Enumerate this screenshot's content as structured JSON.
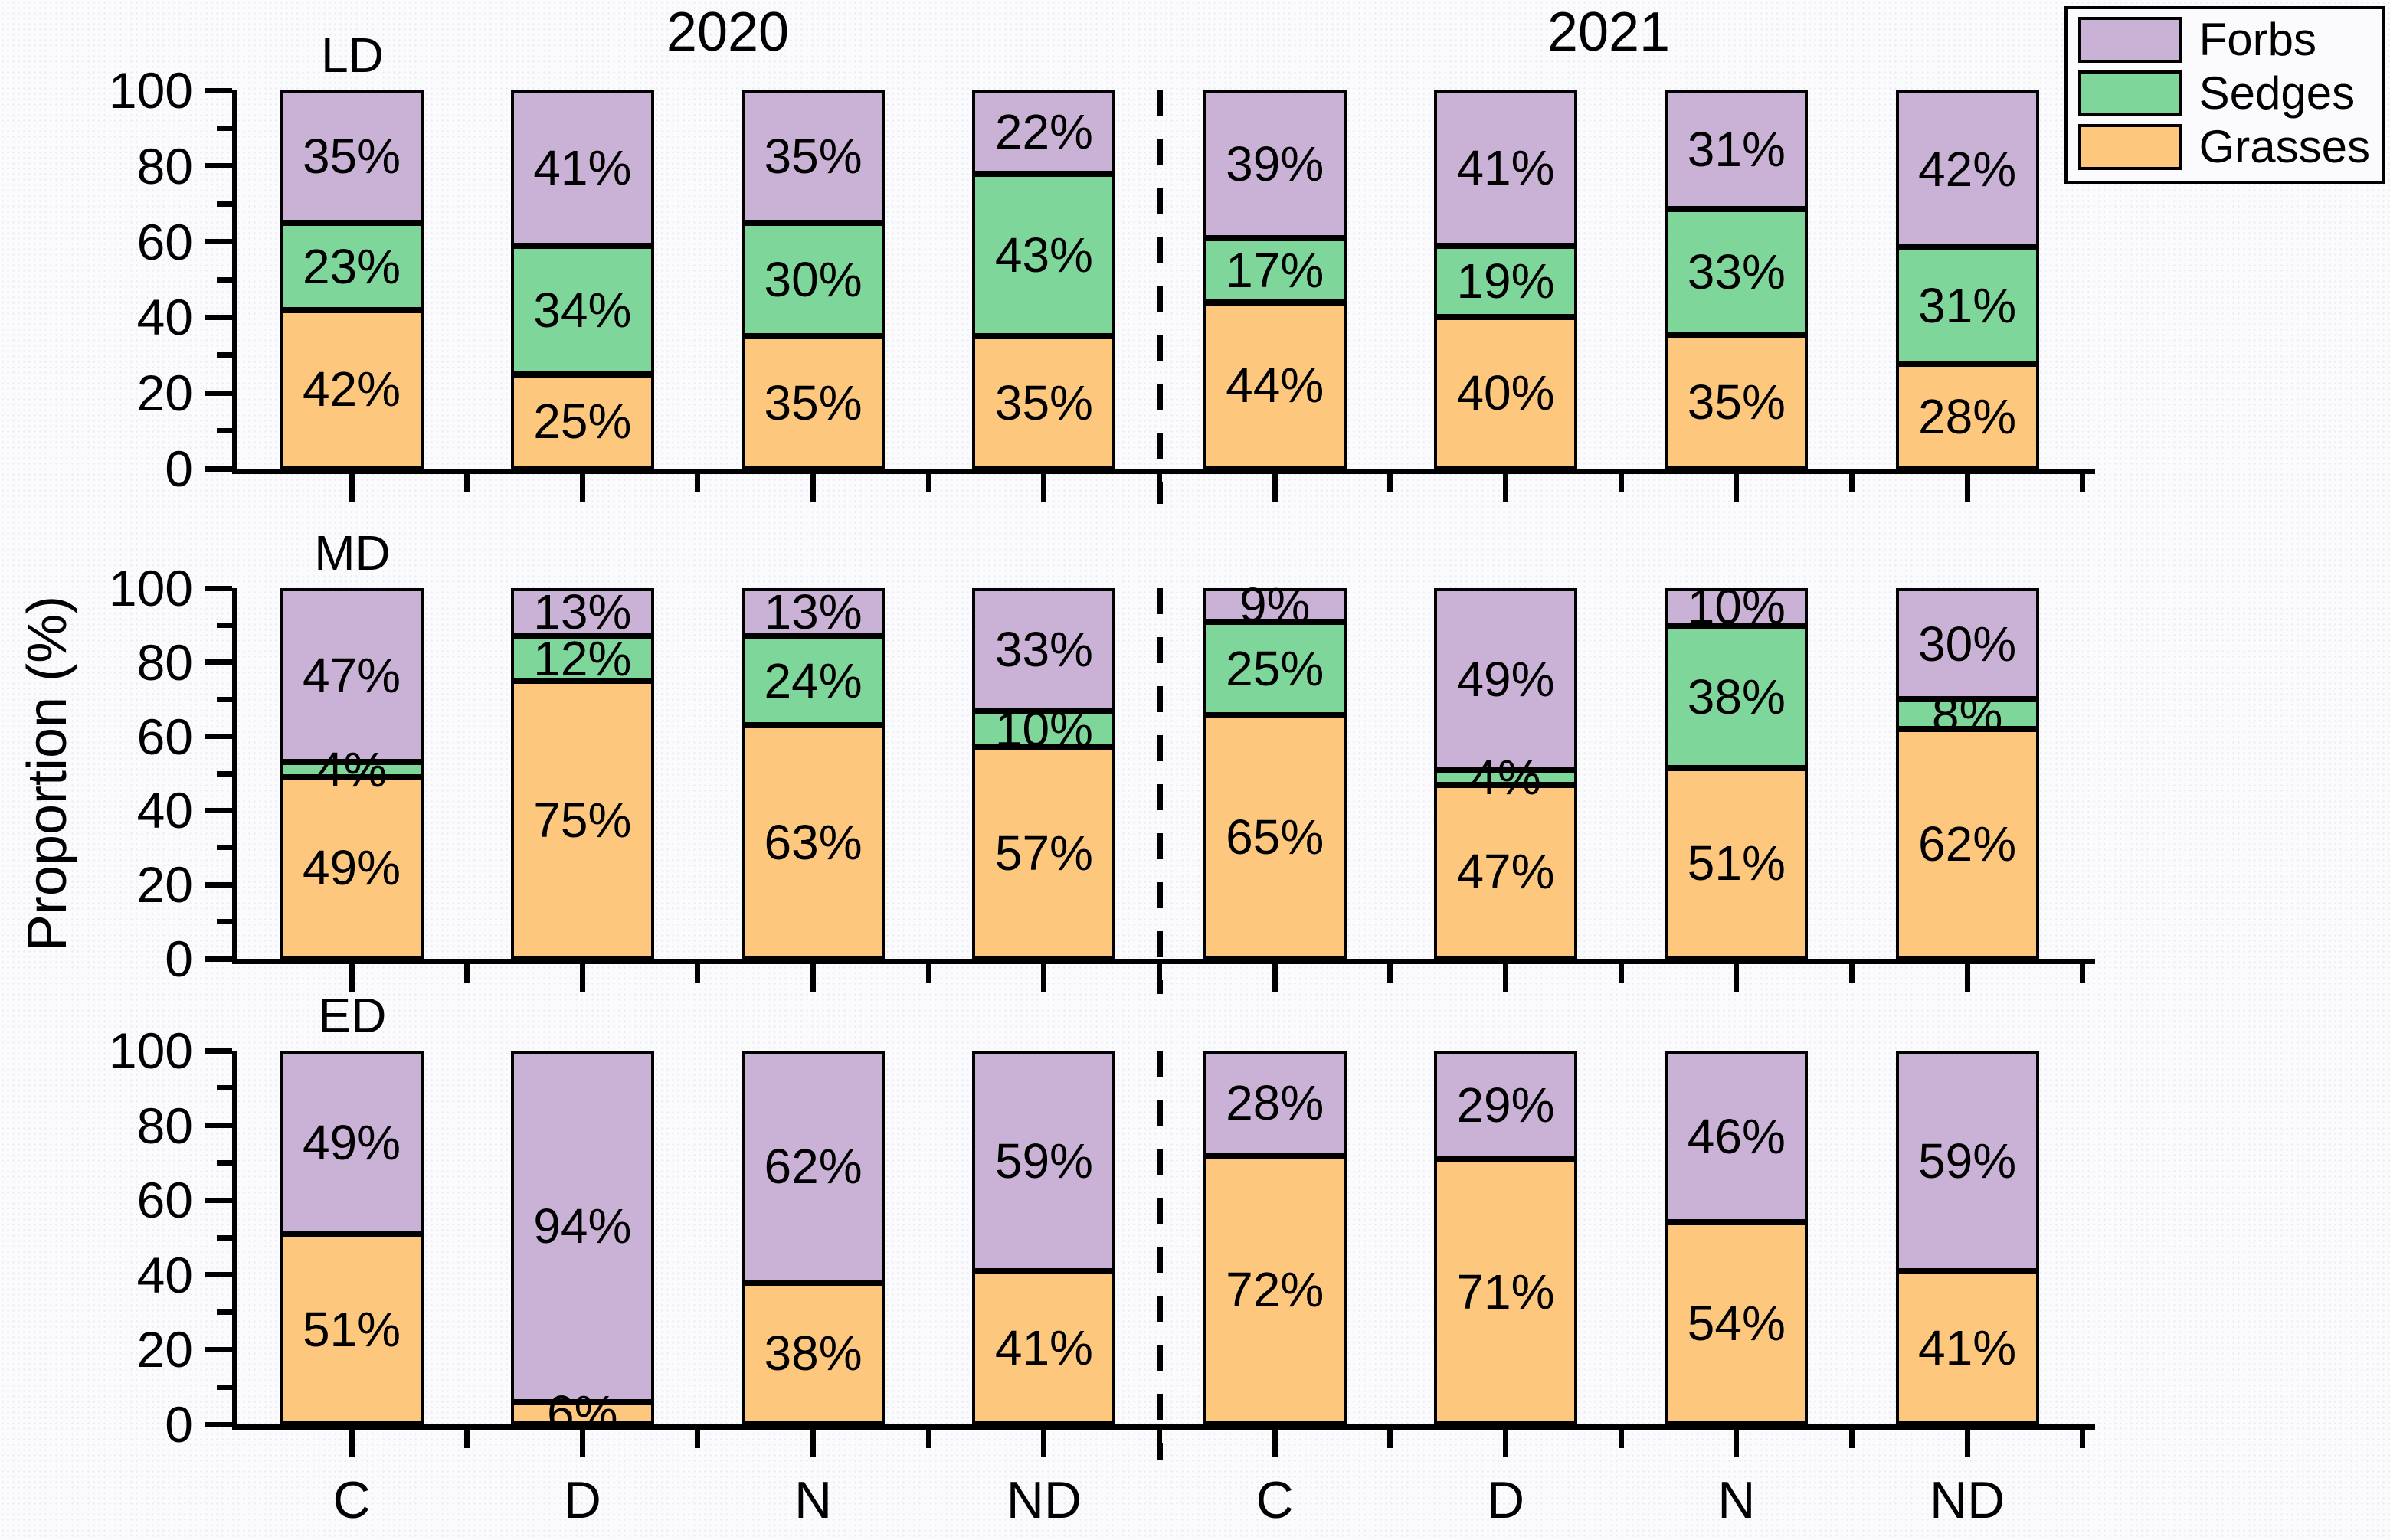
{
  "figure": {
    "ylabel": "Proportion (%)",
    "group_titles": [
      "2020",
      "2021"
    ],
    "x_tick_labels": [
      "C",
      "D",
      "N",
      "ND",
      "C",
      "D",
      "N",
      "ND"
    ],
    "y_tick_labels": [
      "0",
      "20",
      "40",
      "60",
      "80",
      "100"
    ],
    "legend": {
      "entries": [
        {
          "label": "Forbs",
          "color": "#cab2d6"
        },
        {
          "label": "Sedges",
          "color": "#7fd69b"
        },
        {
          "label": "Grasses",
          "color": "#fdc87e"
        }
      ]
    }
  },
  "chart_data": [
    {
      "type": "bar",
      "stacked": true,
      "panel_title": "LD",
      "ylabel": "Proportion (%)",
      "ylim": [
        0,
        100
      ],
      "grid": false,
      "legend_position": "top-right",
      "categories": [
        "C 2020",
        "D 2020",
        "N 2020",
        "ND 2020",
        "C 2021",
        "D 2021",
        "N 2021",
        "ND 2021"
      ],
      "series": [
        {
          "name": "Grasses",
          "color": "#fdc87e",
          "values": [
            42,
            25,
            35,
            35,
            44,
            40,
            35,
            28
          ]
        },
        {
          "name": "Sedges",
          "color": "#7fd69b",
          "values": [
            23,
            34,
            30,
            43,
            17,
            19,
            33,
            31
          ]
        },
        {
          "name": "Forbs",
          "color": "#cab2d6",
          "values": [
            35,
            41,
            35,
            22,
            39,
            41,
            31,
            42
          ]
        }
      ]
    },
    {
      "type": "bar",
      "stacked": true,
      "panel_title": "MD",
      "ylabel": "Proportion (%)",
      "ylim": [
        0,
        100
      ],
      "grid": false,
      "categories": [
        "C 2020",
        "D 2020",
        "N 2020",
        "ND 2020",
        "C 2021",
        "D 2021",
        "N 2021",
        "ND 2021"
      ],
      "series": [
        {
          "name": "Grasses",
          "color": "#fdc87e",
          "values": [
            49,
            75,
            63,
            57,
            65,
            47,
            51,
            62
          ]
        },
        {
          "name": "Sedges",
          "color": "#7fd69b",
          "values": [
            4,
            12,
            24,
            10,
            25,
            4,
            38,
            8
          ]
        },
        {
          "name": "Forbs",
          "color": "#cab2d6",
          "values": [
            47,
            13,
            13,
            33,
            9,
            49,
            10,
            30
          ]
        }
      ]
    },
    {
      "type": "bar",
      "stacked": true,
      "panel_title": "ED",
      "ylabel": "Proportion (%)",
      "ylim": [
        0,
        100
      ],
      "grid": false,
      "categories": [
        "C 2020",
        "D 2020",
        "N 2020",
        "ND 2020",
        "C 2021",
        "D 2021",
        "N 2021",
        "ND 2021"
      ],
      "series": [
        {
          "name": "Grasses",
          "color": "#fdc87e",
          "values": [
            51,
            6,
            38,
            41,
            72,
            71,
            54,
            41
          ]
        },
        {
          "name": "Sedges",
          "color": "#7fd69b",
          "values": [
            0,
            0,
            0,
            0,
            0,
            0,
            0,
            0
          ]
        },
        {
          "name": "Forbs",
          "color": "#cab2d6",
          "values": [
            49,
            94,
            62,
            59,
            28,
            29,
            46,
            59
          ]
        }
      ]
    }
  ]
}
